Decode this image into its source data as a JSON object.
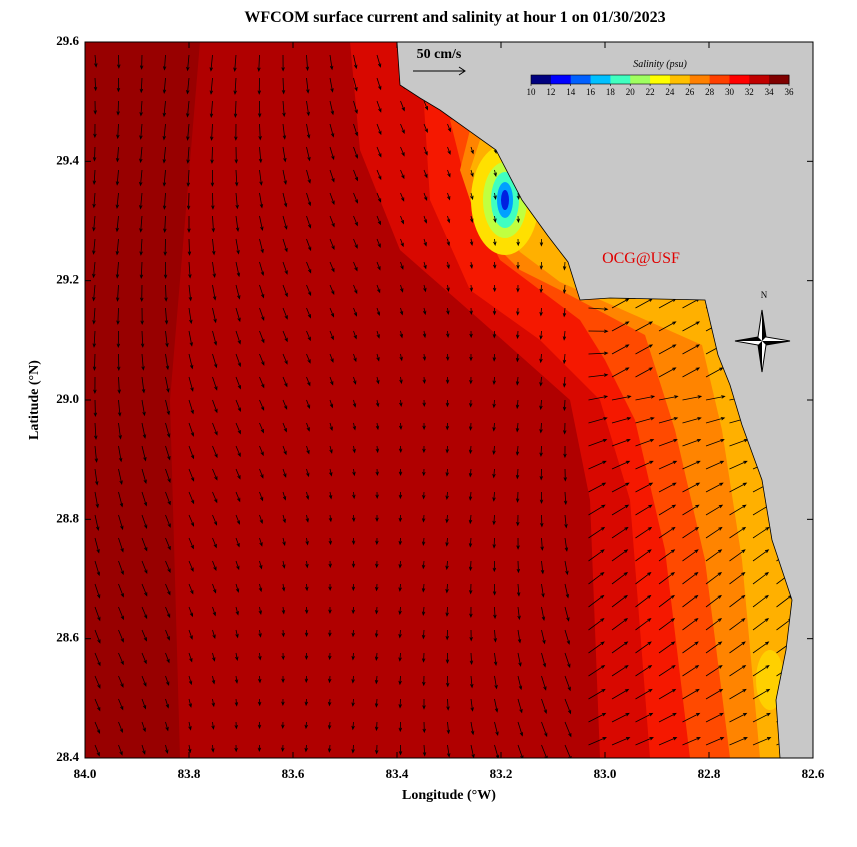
{
  "chart_data": {
    "type": "map",
    "title": "WFCOM surface current and salinity at hour 1 on 01/30/2023",
    "x_label": "Longitude (°W)",
    "y_label": "Latitude (°N)",
    "xlim": [
      84.0,
      82.6
    ],
    "ylim": [
      28.4,
      29.6
    ],
    "xticks": [
      {
        "value": 84.0,
        "label": "84.0"
      },
      83.8,
      83.6,
      83.4,
      83.2,
      {
        "value": 83.0,
        "label": "83.0"
      },
      82.8,
      82.6
    ],
    "yticks": [
      28.4,
      28.6,
      28.8,
      {
        "value": 29.0,
        "label": "29.0"
      },
      29.2,
      29.4,
      29.6
    ],
    "scale_label": "50 cm/s",
    "watermark": "OCG@USF",
    "compass_label": "N",
    "colorbar": {
      "label": "Salinity (psu)",
      "lim": [
        10,
        36
      ],
      "ticks": [
        10,
        12,
        14,
        16,
        18,
        20,
        22,
        24,
        26,
        28,
        30,
        32,
        34,
        36
      ],
      "colors": [
        "#00007f",
        "#0000ff",
        "#0060ff",
        "#00c0ff",
        "#40ffc0",
        "#a0ff60",
        "#ffff00",
        "#ffc000",
        "#ff8000",
        "#ff4000",
        "#ff0000",
        "#c00000",
        "#7f0000"
      ]
    }
  }
}
